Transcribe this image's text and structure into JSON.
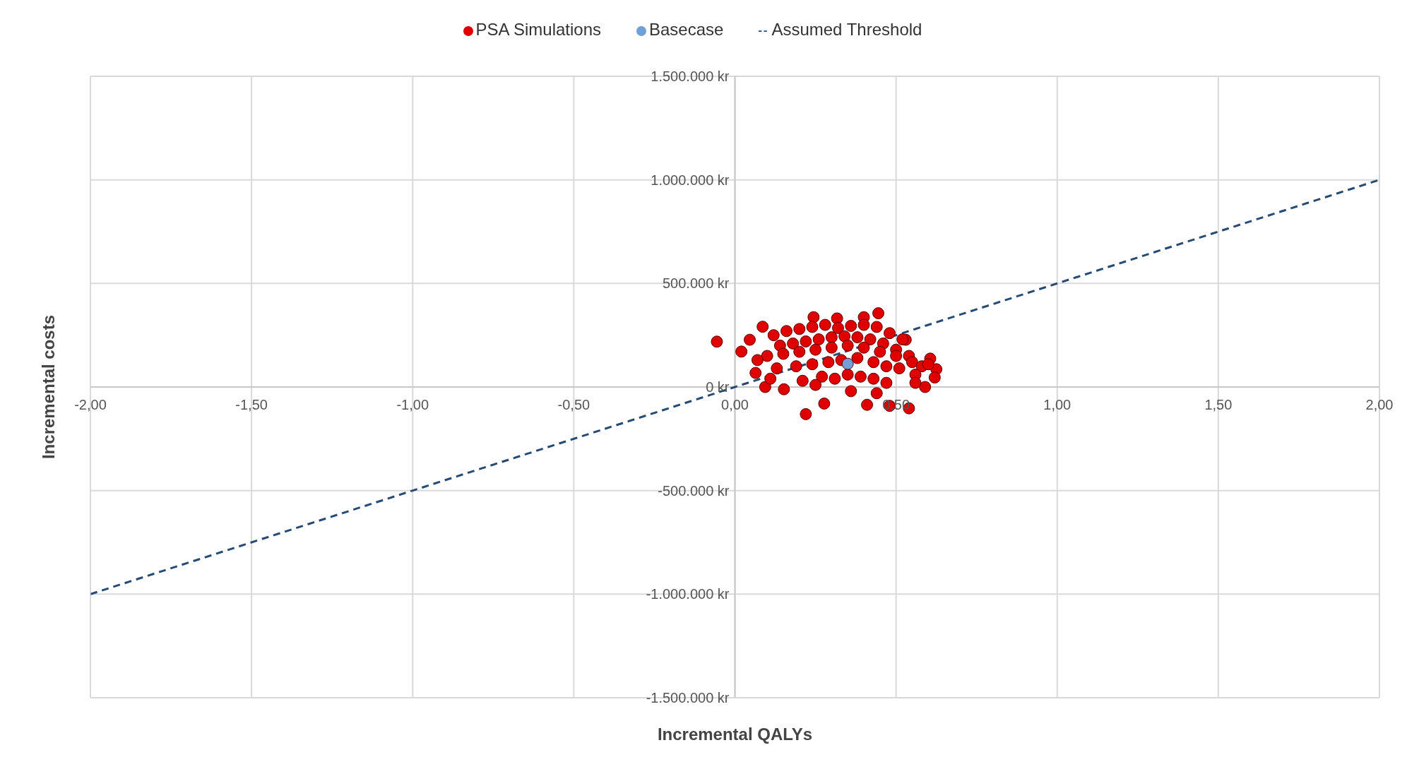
{
  "chart_data": {
    "type": "scatter",
    "xlabel": "Incremental QALYs",
    "ylabel": "Incremental costs",
    "xlim": [
      -2,
      2
    ],
    "ylim": [
      -1500000,
      1500000
    ],
    "xticks": [
      {
        "value": -2,
        "label": "-2,00"
      },
      {
        "value": -1.5,
        "label": "-1,50"
      },
      {
        "value": -1,
        "label": "-1,00"
      },
      {
        "value": -0.5,
        "label": "-0,50"
      },
      {
        "value": 0,
        "label": "0,00"
      },
      {
        "value": 0.5,
        "label": "0,50"
      },
      {
        "value": 1,
        "label": "1,00"
      },
      {
        "value": 1.5,
        "label": "1,50"
      },
      {
        "value": 2,
        "label": "2,00"
      }
    ],
    "yticks": [
      {
        "value": -1500000,
        "label": "-1.500.000 kr"
      },
      {
        "value": -1000000,
        "label": "-1.000.000 kr"
      },
      {
        "value": -500000,
        "label": "-500.000 kr"
      },
      {
        "value": 0,
        "label": "0 kr"
      },
      {
        "value": 500000,
        "label": "500.000 kr"
      },
      {
        "value": 1000000,
        "label": "1.000.000 kr"
      },
      {
        "value": 1500000,
        "label": "1.500.000 kr"
      }
    ],
    "grid": true,
    "legend": "top",
    "marker": "circle",
    "series": [
      {
        "name": "PSA Simulations",
        "color": "#e00000",
        "x": [
          -0.056,
          0.02,
          0.22,
          0.445,
          0.54,
          0.244,
          0.317,
          0.4,
          0.625,
          0.62,
          0.606,
          0.59,
          0.53,
          0.277,
          0.41,
          0.48,
          0.086,
          0.046,
          0.094,
          0.064,
          0.152,
          0.12,
          0.16,
          0.2,
          0.24,
          0.28,
          0.32,
          0.36,
          0.4,
          0.44,
          0.48,
          0.52,
          0.14,
          0.18,
          0.22,
          0.26,
          0.3,
          0.34,
          0.38,
          0.42,
          0.46,
          0.5,
          0.54,
          0.1,
          0.15,
          0.2,
          0.25,
          0.3,
          0.35,
          0.4,
          0.45,
          0.5,
          0.55,
          0.58,
          0.13,
          0.19,
          0.24,
          0.29,
          0.33,
          0.38,
          0.43,
          0.47,
          0.51,
          0.56,
          0.27,
          0.31,
          0.35,
          0.39,
          0.43,
          0.47,
          0.21,
          0.25,
          0.36,
          0.44,
          0.07,
          0.11,
          0.56,
          0.6
        ],
        "values": [
          219000,
          171000,
          -131000,
          356000,
          -103000,
          337000,
          331000,
          337000,
          86000,
          46000,
          137000,
          0,
          228000,
          -80000,
          -86000,
          -91000,
          291000,
          228000,
          0,
          68000,
          -11000,
          250000,
          270000,
          280000,
          290000,
          300000,
          285000,
          295000,
          300000,
          290000,
          260000,
          230000,
          200000,
          210000,
          220000,
          230000,
          240000,
          245000,
          240000,
          230000,
          210000,
          180000,
          150000,
          150000,
          160000,
          170000,
          180000,
          190000,
          200000,
          190000,
          170000,
          150000,
          120000,
          100000,
          90000,
          100000,
          110000,
          120000,
          130000,
          140000,
          120000,
          100000,
          90000,
          60000,
          50000,
          40000,
          60000,
          50000,
          40000,
          20000,
          30000,
          10000,
          -20000,
          -30000,
          130000,
          40000,
          20000,
          110000
        ]
      },
      {
        "name": "Basecase",
        "color": "#6fa0dc",
        "x": [
          0.35
        ],
        "values": [
          112000
        ]
      },
      {
        "name": "Assumed Threshold",
        "type": "line",
        "color": "#254a75",
        "line_style": "dashed",
        "marker": "none",
        "x": [
          -2,
          2
        ],
        "values": [
          -1000000,
          1000000
        ]
      }
    ]
  }
}
